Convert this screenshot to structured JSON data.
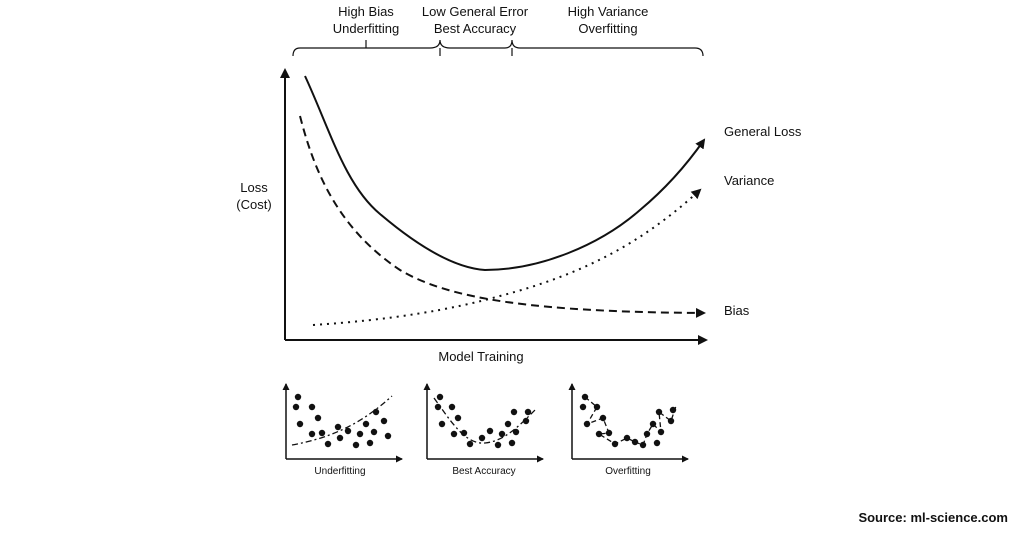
{
  "regions": [
    {
      "line1": "High Bias",
      "line2": "Underfitting"
    },
    {
      "line1": "Low General Error",
      "line2": "Best Accuracy"
    },
    {
      "line1": "High Variance",
      "line2": "Overfitting"
    }
  ],
  "y_axis": {
    "line1": "Loss",
    "line2": "(Cost)"
  },
  "x_axis": {
    "label": "Model Training"
  },
  "curves": {
    "general_loss": "General Loss",
    "variance": "Variance",
    "bias": "Bias"
  },
  "thumbnails": [
    {
      "label": "Underfitting"
    },
    {
      "label": "Best Accuracy"
    },
    {
      "label": "Overfitting"
    }
  ],
  "source": "Source: ml-science.com"
}
